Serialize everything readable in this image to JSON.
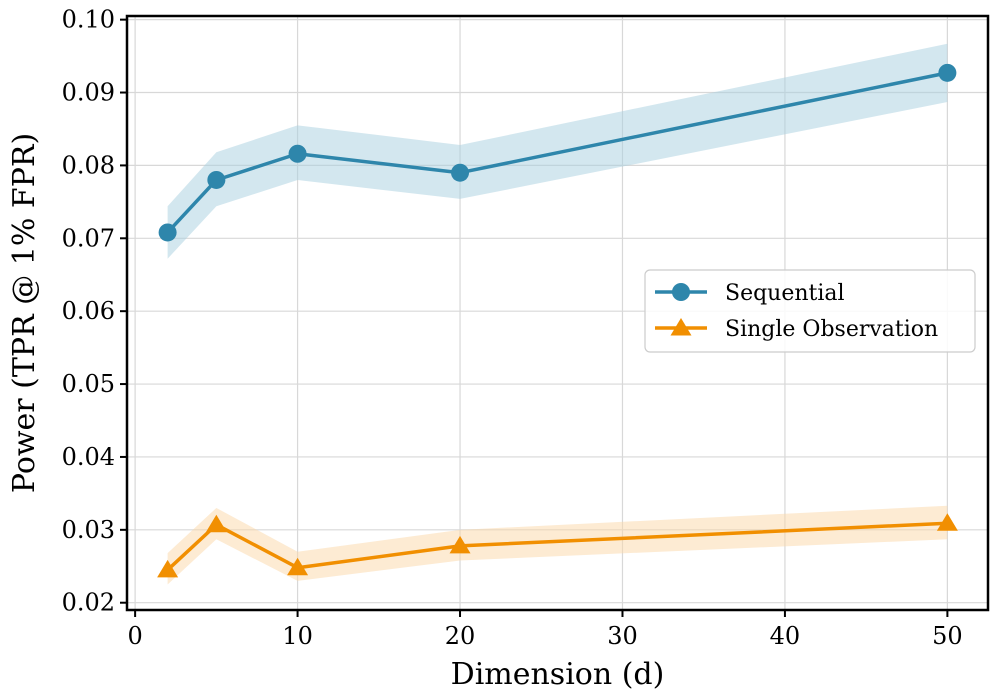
{
  "chart_data": {
    "type": "line",
    "xlabel": "Dimension (d)",
    "ylabel": "Power (TPR @ 1% FPR)",
    "xlim": [
      -0.5,
      52.5
    ],
    "ylim": [
      0.019,
      0.1005
    ],
    "xticks": [
      0,
      10,
      20,
      30,
      40,
      50
    ],
    "xtick_labels": [
      "0",
      "10",
      "20",
      "30",
      "40",
      "50"
    ],
    "yticks": [
      0.02,
      0.03,
      0.04,
      0.05,
      0.06,
      0.07,
      0.08,
      0.09,
      0.1
    ],
    "ytick_labels": [
      "0.02",
      "0.03",
      "0.04",
      "0.05",
      "0.06",
      "0.07",
      "0.08",
      "0.09",
      "0.10"
    ],
    "grid": true,
    "legend_position": "center-right",
    "series": [
      {
        "name": "Sequential",
        "marker": "circle",
        "color": "#2e86ab",
        "band_color": "#a8cfe0",
        "x": [
          2,
          5,
          10,
          20,
          50
        ],
        "y": [
          0.0708,
          0.078,
          0.0816,
          0.079,
          0.0927
        ],
        "lower": [
          0.0672,
          0.0744,
          0.078,
          0.0754,
          0.0887
        ],
        "upper": [
          0.0744,
          0.0818,
          0.0855,
          0.0828,
          0.0967
        ]
      },
      {
        "name": "Single Observation",
        "marker": "triangle",
        "color": "#f18f01",
        "band_color": "#fbd8a8",
        "x": [
          2,
          5,
          10,
          20,
          50
        ],
        "y": [
          0.0245,
          0.0307,
          0.0248,
          0.0278,
          0.0309
        ],
        "lower": [
          0.0225,
          0.0287,
          0.023,
          0.0258,
          0.0287
        ],
        "upper": [
          0.0268,
          0.033,
          0.027,
          0.03,
          0.0333
        ]
      }
    ]
  }
}
